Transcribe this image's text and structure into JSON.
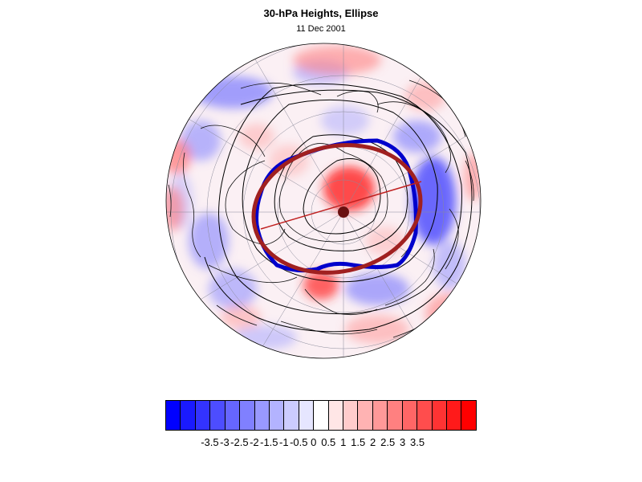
{
  "title": "30-hPa Heights, Ellipse",
  "subtitle": "11 Dec 2001",
  "map": {
    "projection": "polar-stereographic-north",
    "ellipse_color": "#a02020",
    "contour_highlight_color": "#0000cc",
    "anomaly_field": "colour-shaded departures",
    "features": [
      "coastlines",
      "lat-lon graticule",
      "height contours",
      "fitted ellipse",
      "major axis line",
      "ellipse centre"
    ]
  },
  "colorbar": {
    "labels": [
      "-3.5",
      "-3",
      "-2.5",
      "-2",
      "-1.5",
      "-1",
      "-0.5",
      "0",
      "0.5",
      "1",
      "1.5",
      "2",
      "2.5",
      "3",
      "3.5"
    ],
    "colors": [
      "#0000ff",
      "#1a1aff",
      "#3333ff",
      "#4d4dff",
      "#6666ff",
      "#8080ff",
      "#9999ff",
      "#b3b3ff",
      "#ccccff",
      "#e6e6ff",
      "#ffffff",
      "#ffe6e6",
      "#ffcccc",
      "#ffb3b3",
      "#ff9999",
      "#ff8080",
      "#ff6666",
      "#ff4d4d",
      "#ff3333",
      "#ff1a1a",
      "#ff0000"
    ]
  }
}
